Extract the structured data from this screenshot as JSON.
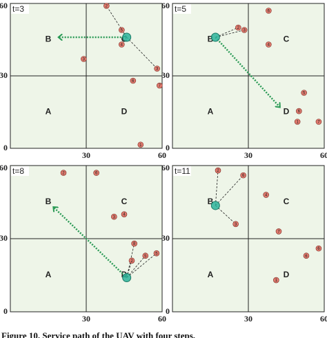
{
  "chart_data": [
    {
      "type": "scatter",
      "title": "t=3",
      "xlim": [
        0,
        60
      ],
      "ylim": [
        0,
        60
      ],
      "xticks": [
        30,
        60
      ],
      "yticks": [
        0,
        30,
        60
      ],
      "grid": true,
      "regions": [
        "A",
        "B",
        "C",
        "D"
      ],
      "points": {
        "x": [
          38,
          44,
          44,
          29,
          58,
          48.5,
          59,
          51.5
        ],
        "y": [
          59,
          49,
          43,
          37,
          33,
          28,
          26,
          1.5
        ],
        "labels": [
          "2",
          "5",
          "4",
          "3",
          "3",
          "6",
          "7",
          "1"
        ]
      },
      "uav": {
        "x": 46,
        "y": 46
      },
      "served": [
        0,
        1,
        2,
        4
      ],
      "path": {
        "x": [
          46,
          19
        ],
        "y": [
          46,
          46
        ]
      }
    },
    {
      "type": "scatter",
      "title": "t=5",
      "xlim": [
        0,
        60
      ],
      "ylim": [
        0,
        60
      ],
      "xticks": [
        30,
        60
      ],
      "yticks": [
        0,
        30,
        60
      ],
      "grid": true,
      "regions": [
        "A",
        "B",
        "C",
        "D"
      ],
      "points": {
        "x": [
          26,
          28.4,
          38,
          38,
          52,
          50,
          49.4,
          57.8
        ],
        "y": [
          50,
          49,
          57,
          43,
          23,
          15.4,
          11,
          11
        ],
        "labels": [
          "2",
          "3",
          "6",
          "4",
          "5",
          "6",
          "1",
          "7"
        ]
      },
      "uav": {
        "x": 17,
        "y": 46
      },
      "served": [
        0,
        1
      ],
      "path": {
        "x": [
          17,
          42.5
        ],
        "y": [
          46,
          17
        ]
      }
    },
    {
      "type": "scatter",
      "title": "t=8",
      "xlim": [
        0,
        60
      ],
      "ylim": [
        0,
        60
      ],
      "xticks": [
        30,
        60
      ],
      "yticks": [
        0,
        30,
        60
      ],
      "grid": true,
      "regions": [
        "A",
        "B",
        "C",
        "D"
      ],
      "points": {
        "x": [
          21,
          34,
          41,
          45,
          49,
          48,
          53.4,
          57.8
        ],
        "y": [
          57,
          57,
          39,
          40,
          28,
          21,
          23,
          24
        ],
        "labels": [
          "2",
          "6",
          "3",
          "4",
          "8",
          "2",
          "5",
          "5"
        ]
      },
      "uav": {
        "x": 46,
        "y": 14
      },
      "served": [
        4,
        5,
        6,
        7
      ],
      "path": {
        "x": [
          46,
          17
        ],
        "y": [
          14,
          43
        ]
      }
    },
    {
      "type": "scatter",
      "title": "t=11",
      "xlim": [
        0,
        60
      ],
      "ylim": [
        0,
        60
      ],
      "xticks": [
        30,
        60
      ],
      "yticks": [
        0,
        30,
        60
      ],
      "grid": true,
      "regions": [
        "A",
        "B",
        "C",
        "D"
      ],
      "points": {
        "x": [
          18,
          28,
          25,
          37,
          42,
          57.8,
          52.9,
          41
        ],
        "y": [
          58,
          56,
          36,
          48,
          33,
          26,
          23,
          13
        ],
        "labels": [
          "2",
          "6",
          "3",
          "4",
          "7",
          "6",
          "6",
          "1"
        ]
      },
      "uav": {
        "x": 17,
        "y": 43.6
      },
      "served": [
        0,
        1,
        2
      ]
    }
  ],
  "caption": "Figure 10. Service path of the UAV with four steps."
}
